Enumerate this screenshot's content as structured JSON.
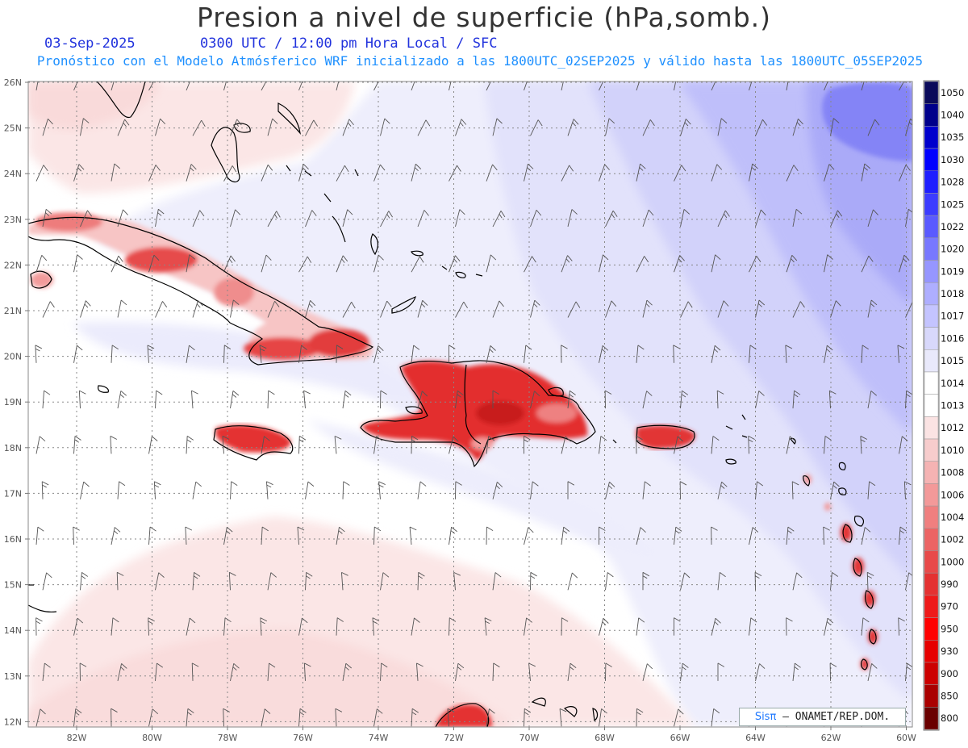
{
  "header": {
    "title": "Presion a nivel de superficie (hPa,somb.)",
    "date": "03-Sep-2025",
    "time": "0300 UTC / 12:00 pm Hora Local / SFC",
    "info": "Pronóstico con el Modelo Atmósferico WRF inicializado a las 1800UTC_02SEP2025 y válido hasta las  1800UTC_05SEP2025"
  },
  "axes": {
    "lon_labels": [
      "82W",
      "80W",
      "78W",
      "76W",
      "74W",
      "72W",
      "70W",
      "68W",
      "66W",
      "64W",
      "62W",
      "60W"
    ],
    "lat_labels": [
      "26N",
      "25N",
      "24N",
      "23N",
      "22N",
      "21N",
      "20N",
      "19N",
      "18N",
      "17N",
      "16N",
      "15N",
      "14N",
      "13N",
      "12N"
    ]
  },
  "colorbar": {
    "levels": [
      "1050",
      "1040",
      "1035",
      "1030",
      "1028",
      "1025",
      "1022",
      "1020",
      "1019",
      "1018",
      "1017",
      "1016",
      "1015",
      "1014",
      "1013",
      "1012",
      "1010",
      "1008",
      "1006",
      "1004",
      "1002",
      "1000",
      "990",
      "970",
      "950",
      "930",
      "900",
      "850",
      "800"
    ],
    "colors": [
      "#0a0a5a",
      "#00008b",
      "#0000cd",
      "#0000ff",
      "#1f1fff",
      "#3c3cff",
      "#5a5aff",
      "#7878ff",
      "#9696ff",
      "#aeaeff",
      "#c4c4ff",
      "#d8d8fb",
      "#e9e9fb",
      "#ffffff",
      "#ffffff",
      "#fbe3e3",
      "#f7cccc",
      "#f5b3b3",
      "#f39999",
      "#f07f7f",
      "#ec6464",
      "#e84a4a",
      "#e43232",
      "#ee1a1a",
      "#ff0000",
      "#e60000",
      "#cc0000",
      "#aa0000",
      "#6a0000"
    ]
  },
  "credit": {
    "brand": "Sisπ",
    "text": "– ONAMET/REP.DOM."
  }
}
